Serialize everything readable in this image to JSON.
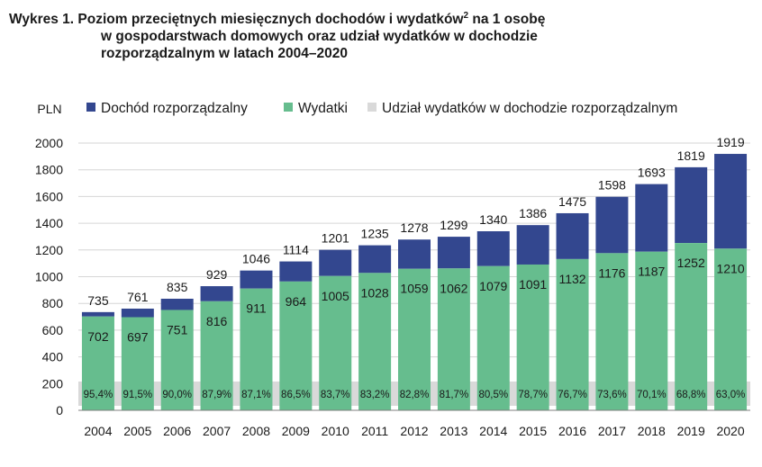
{
  "title": {
    "line1_prefix": "Wykres 1. Poziom przeciętnych miesięcznych dochodów i wydatków",
    "footnote_mark": "2",
    "line1_suffix": " na 1 osobę",
    "line2": "w gospodarstwach domowych oraz udział wydatków w dochodzie",
    "line3": "rozporządzalnym w latach 2004–2020"
  },
  "colors": {
    "income": "#33478f",
    "expenses": "#66bd8e",
    "share_band": "#d9d9d9",
    "grid": "#d6d6d6",
    "text": "#1a1a1a"
  },
  "chart_data": {
    "type": "bar",
    "unit_label": "PLN",
    "categories": [
      "2004",
      "2005",
      "2006",
      "2007",
      "2008",
      "2009",
      "2010",
      "2011",
      "2012",
      "2013",
      "2014",
      "2015",
      "2016",
      "2017",
      "2018",
      "2019",
      "2020"
    ],
    "series": [
      {
        "name": "Dochód rozporządzalny",
        "values": [
          735,
          761,
          835,
          929,
          1046,
          1114,
          1201,
          1235,
          1278,
          1299,
          1340,
          1386,
          1475,
          1598,
          1693,
          1819,
          1919
        ]
      },
      {
        "name": "Wydatki",
        "values": [
          702,
          697,
          751,
          816,
          911,
          964,
          1005,
          1028,
          1059,
          1062,
          1079,
          1091,
          1132,
          1176,
          1187,
          1252,
          1210
        ]
      },
      {
        "name": "Udział wydatków w dochodzie rozporządzalnym",
        "values": [
          "95,4%",
          "91,5%",
          "90,0%",
          "87,9%",
          "87,1%",
          "86,5%",
          "83,7%",
          "83,2%",
          "82,8%",
          "81,7%",
          "80,5%",
          "78,7%",
          "76,7%",
          "73,6%",
          "70,1%",
          "68,8%",
          "63,0%"
        ]
      }
    ],
    "yticks": [
      0,
      200,
      400,
      600,
      800,
      1000,
      1200,
      1400,
      1600,
      1800,
      2000
    ],
    "ylim": [
      0,
      2000
    ],
    "grid": true,
    "legend_position": "top"
  }
}
